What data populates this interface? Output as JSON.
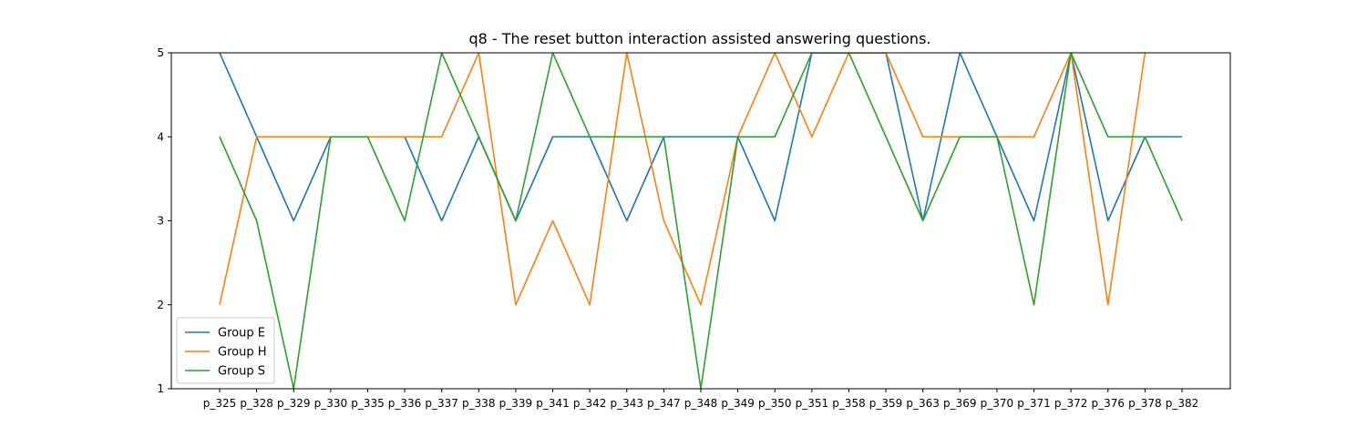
{
  "chart_data": {
    "type": "line",
    "title": "q8 - The reset button interaction assisted answering questions.",
    "xlabel": "",
    "ylabel": "",
    "categories": [
      "p_325",
      "p_328",
      "p_329",
      "p_330",
      "p_335",
      "p_336",
      "p_337",
      "p_338",
      "p_339",
      "p_341",
      "p_342",
      "p_343",
      "p_347",
      "p_348",
      "p_349",
      "p_350",
      "p_351",
      "p_358",
      "p_359",
      "p_363",
      "p_369",
      "p_370",
      "p_371",
      "p_372",
      "p_376",
      "p_378",
      "p_382"
    ],
    "ylim": [
      1,
      5
    ],
    "yticks": [
      1,
      2,
      3,
      4,
      5
    ],
    "grid": false,
    "legend_position": "lower-left",
    "series": [
      {
        "name": "Group E",
        "color": "#1f77b4",
        "values": [
          5,
          4,
          3,
          4,
          4,
          4,
          3,
          4,
          3,
          4,
          4,
          3,
          4,
          4,
          4,
          3,
          5,
          5,
          5,
          3,
          5,
          4,
          3,
          5,
          3,
          4,
          4
        ]
      },
      {
        "name": "Group H",
        "color": "#ff7f0e",
        "values": [
          2,
          4,
          4,
          4,
          4,
          4,
          4,
          5,
          2,
          3,
          2,
          5,
          3,
          2,
          4,
          5,
          4,
          5,
          5,
          4,
          4,
          4,
          4,
          5,
          2,
          5,
          null
        ]
      },
      {
        "name": "Group S",
        "color": "#2ca02c",
        "values": [
          4,
          3,
          1,
          4,
          4,
          3,
          5,
          4,
          3,
          5,
          4,
          4,
          4,
          1,
          4,
          4,
          5,
          5,
          4,
          3,
          4,
          4,
          2,
          5,
          4,
          4,
          3
        ]
      }
    ]
  }
}
